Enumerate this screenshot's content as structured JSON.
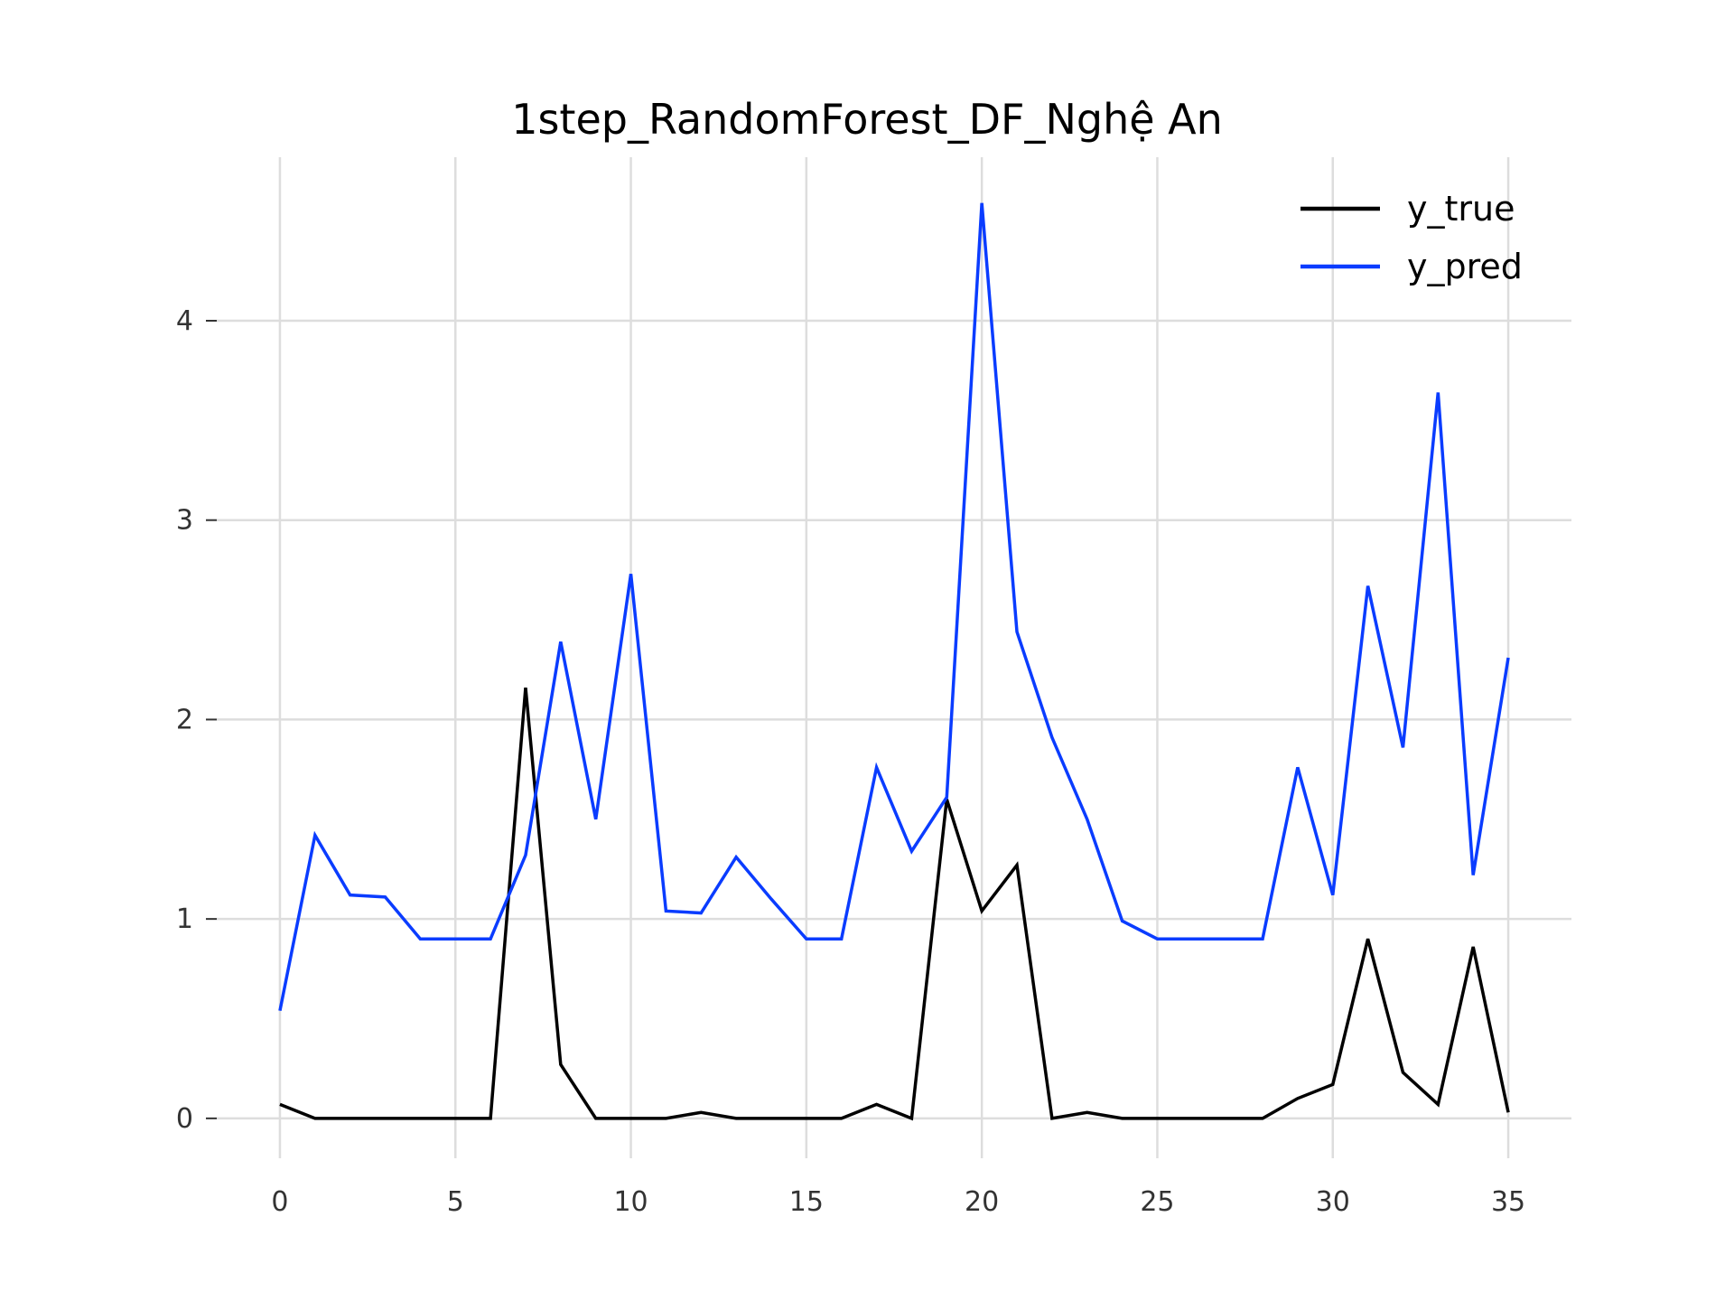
{
  "chart_data": {
    "type": "line",
    "title": "1step_RandomForest_DF_Nghệ An",
    "xlabel": "",
    "ylabel": "",
    "xlim": [
      -1.8,
      36.8
    ],
    "ylim": [
      -0.2,
      4.82
    ],
    "xticks": [
      0,
      5,
      10,
      15,
      20,
      25,
      30,
      35
    ],
    "yticks": [
      0,
      1,
      2,
      3,
      4
    ],
    "grid": true,
    "legend_position": "top-right",
    "x": [
      0,
      1,
      2,
      3,
      4,
      5,
      6,
      7,
      8,
      9,
      10,
      11,
      12,
      13,
      14,
      15,
      16,
      17,
      18,
      19,
      20,
      21,
      22,
      23,
      24,
      25,
      26,
      27,
      28,
      29,
      30,
      31,
      32,
      33,
      34,
      35
    ],
    "series": [
      {
        "name": "y_true",
        "color": "#000000",
        "values": [
          0.07,
          0,
          0,
          0,
          0,
          0,
          0,
          2.16,
          0.27,
          0,
          0,
          0,
          0.03,
          0,
          0,
          0,
          0,
          0.07,
          0,
          1.6,
          1.04,
          1.27,
          0,
          0.03,
          0,
          0,
          0,
          0,
          0,
          0.1,
          0.17,
          0.9,
          0.23,
          0.07,
          0.86,
          0.03
        ]
      },
      {
        "name": "y_pred",
        "color": "#0a3cff",
        "values": [
          0.54,
          1.42,
          1.12,
          1.11,
          0.9,
          0.9,
          0.9,
          1.32,
          2.39,
          1.5,
          2.73,
          1.04,
          1.03,
          1.31,
          1.1,
          0.9,
          0.9,
          1.76,
          1.34,
          1.61,
          4.59,
          2.44,
          1.91,
          1.5,
          0.99,
          0.9,
          0.9,
          0.9,
          0.9,
          1.76,
          1.12,
          2.67,
          1.86,
          3.64,
          1.22,
          2.31
        ]
      }
    ]
  }
}
